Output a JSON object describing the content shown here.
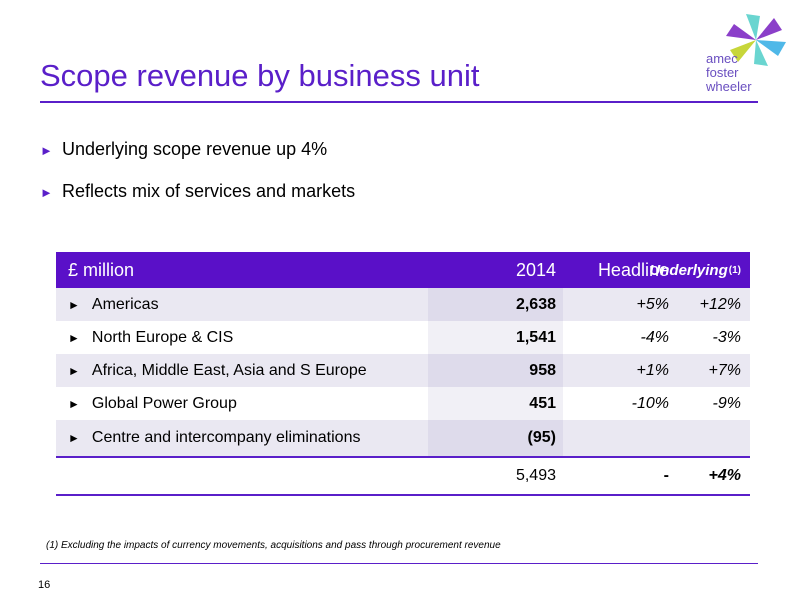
{
  "title": "Scope revenue by business unit",
  "logo": {
    "lines": [
      "amec",
      "foster",
      "wheeler"
    ],
    "colors": [
      "#6ad5d0",
      "#8b3fc9",
      "#c7d63a",
      "#4fb8e8"
    ]
  },
  "bullets": [
    "Underlying scope revenue up 4%",
    "Reflects mix of services and markets"
  ],
  "table": {
    "headers": {
      "label": "£ million",
      "year": "2014",
      "headline": "Headline",
      "underlying": "Underlying",
      "underlying_note": "(1)"
    },
    "rows": [
      {
        "label": "Americas",
        "year": "2,638",
        "headline": "+5%",
        "underlying": "+12%"
      },
      {
        "label": "North Europe & CIS",
        "year": "1,541",
        "headline": "-4%",
        "underlying": "-3%"
      },
      {
        "label": "Africa, Middle East, Asia and S Europe",
        "year": "958",
        "headline": "+1%",
        "underlying": "+7%"
      },
      {
        "label": "Global Power Group",
        "year": "451",
        "headline": "-10%",
        "underlying": "-9%"
      },
      {
        "label": "Centre and intercompany eliminations",
        "year": "(95)",
        "headline": "",
        "underlying": ""
      }
    ],
    "total": {
      "year": "5,493",
      "headline": "-",
      "underlying": "+4%"
    }
  },
  "footnote": "(1) Excluding the impacts of currency movements, acquisitions and pass through procurement revenue",
  "page_number": "16"
}
